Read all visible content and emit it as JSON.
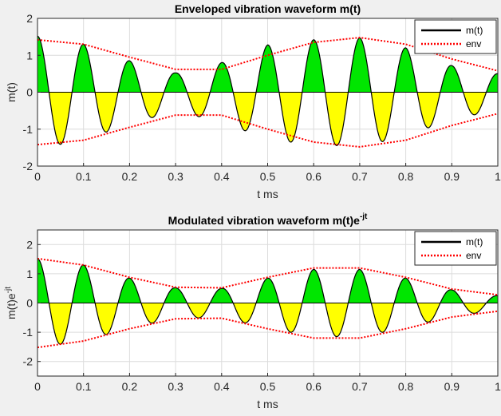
{
  "figure": {
    "background": "#f0f0f0"
  },
  "style": {
    "pos_fill": "#00e600",
    "neg_fill": "#ffff00",
    "signal_color": "#000000",
    "env_color": "#ff0000",
    "axis_color": "#262626",
    "grid_color": "#dcdcdc"
  },
  "chart_data": [
    {
      "type": "area",
      "title": "Enveloped vibration waveform m(t)",
      "xlabel": "t ms",
      "ylabel": "m(t)",
      "xlim": [
        0,
        1
      ],
      "ylim": [
        -2,
        2
      ],
      "xticks": [
        0,
        0.1,
        0.2,
        0.3,
        0.4,
        0.5,
        0.6,
        0.7,
        0.8,
        0.9,
        1
      ],
      "xticklabels": [
        "0",
        "0.1",
        "0.2",
        "0.3",
        "0.4",
        "0.5",
        "0.6",
        "0.7",
        "0.8",
        "0.9",
        "1"
      ],
      "yticks": [
        -2,
        -1,
        0,
        1,
        2
      ],
      "yticklabels": [
        "-2",
        "-1",
        "0",
        "1",
        "2"
      ],
      "grid": true,
      "legend": {
        "position": "top-right",
        "entries": [
          "m(t)",
          "env"
        ]
      },
      "series": [
        {
          "name": "m(t)",
          "style": "solid",
          "x": [
            0,
            0.1,
            0.2,
            0.3,
            0.4,
            0.5,
            0.6,
            0.7,
            0.8,
            0.9,
            1.0
          ],
          "peak_amplitude": [
            1.52,
            1.3,
            0.85,
            0.52,
            0.8,
            1.28,
            1.42,
            1.47,
            1.2,
            0.72,
            0.5
          ],
          "carrier_frequency_per_ms": 10
        },
        {
          "name": "env",
          "style": "dotted",
          "x": [
            0,
            0.1,
            0.2,
            0.3,
            0.4,
            0.5,
            0.6,
            0.7,
            0.8,
            0.9,
            1.0
          ],
          "y": [
            1.42,
            1.3,
            0.95,
            0.62,
            0.62,
            1.0,
            1.35,
            1.48,
            1.3,
            0.9,
            0.58
          ]
        }
      ]
    },
    {
      "type": "area",
      "title": "Modulated vibration waveform m(t)e",
      "title_superscript": "-jt",
      "xlabel": "t ms",
      "ylabel": "m(t)e",
      "ylabel_superscript": "-jt",
      "xlim": [
        0,
        1
      ],
      "ylim": [
        -2.5,
        2.5
      ],
      "xticks": [
        0,
        0.1,
        0.2,
        0.3,
        0.4,
        0.5,
        0.6,
        0.7,
        0.8,
        0.9,
        1
      ],
      "xticklabels": [
        "0",
        "0.1",
        "0.2",
        "0.3",
        "0.4",
        "0.5",
        "0.6",
        "0.7",
        "0.8",
        "0.9",
        "1"
      ],
      "yticks": [
        -2,
        -1,
        0,
        1,
        2
      ],
      "yticklabels": [
        "-2",
        "-1",
        "0",
        "1",
        "2"
      ],
      "grid": true,
      "legend": {
        "position": "top-right",
        "entries": [
          "m(t)",
          "env"
        ]
      },
      "series": [
        {
          "name": "m(t)",
          "style": "solid",
          "x": [
            0,
            0.1,
            0.2,
            0.3,
            0.4,
            0.5,
            0.6,
            0.7,
            0.8,
            0.9,
            1.0
          ],
          "peak_amplitude": [
            1.52,
            1.3,
            0.85,
            0.52,
            0.5,
            0.85,
            1.15,
            1.15,
            0.85,
            0.45,
            0.25
          ],
          "carrier_frequency_per_ms": 10
        },
        {
          "name": "env",
          "style": "dotted",
          "x": [
            0,
            0.1,
            0.2,
            0.3,
            0.4,
            0.5,
            0.6,
            0.7,
            0.8,
            0.9,
            1.0
          ],
          "y": [
            1.52,
            1.3,
            0.88,
            0.54,
            0.52,
            0.88,
            1.2,
            1.2,
            0.88,
            0.48,
            0.28
          ]
        }
      ]
    }
  ]
}
